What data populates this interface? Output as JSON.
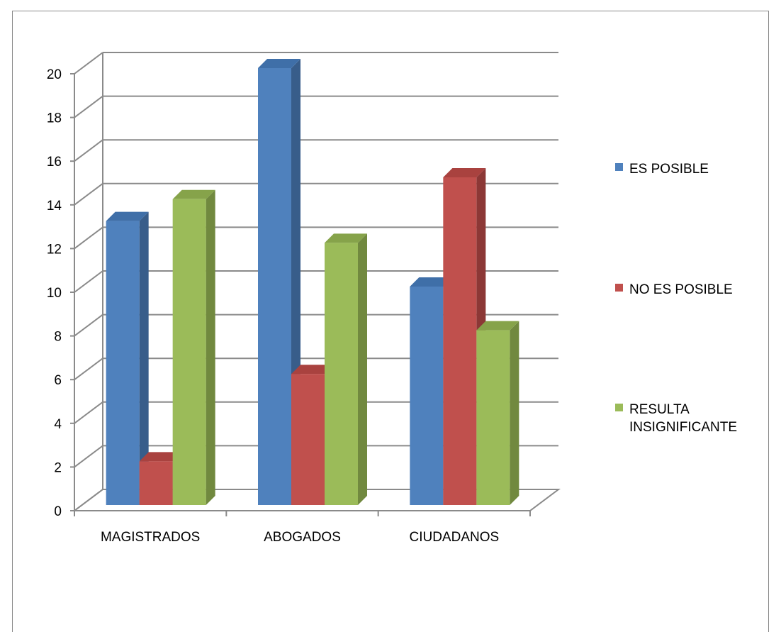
{
  "chart_data": {
    "type": "bar",
    "categories": [
      "MAGISTRADOS",
      "ABOGADOS",
      "CIUDADANOS"
    ],
    "series": [
      {
        "name": "ES POSIBLE",
        "values": [
          13,
          20,
          10
        ]
      },
      {
        "name": "NO ES POSIBLE",
        "values": [
          2,
          6,
          15
        ]
      },
      {
        "name": "RESULTA INSIGNIFICANTE",
        "values": [
          14,
          12,
          8
        ]
      }
    ],
    "legend_lines": [
      [
        "ES POSIBLE"
      ],
      [
        "NO ES POSIBLE"
      ],
      [
        "RESULTA",
        "INSIGNIFICANTE"
      ]
    ],
    "ylim": [
      0,
      20
    ],
    "yticks": [
      0,
      2,
      4,
      6,
      8,
      10,
      12,
      14,
      16,
      18,
      20
    ],
    "grid": true,
    "style": "3d-clustered-column",
    "legend_position": "right",
    "colors": {
      "front": [
        "#4f81bd",
        "#c0504d",
        "#9bbb59"
      ],
      "side": [
        "#385d8a",
        "#8c3836",
        "#71893f"
      ],
      "top": [
        "#3f6fa8",
        "#a9423f",
        "#86a34a"
      ]
    },
    "title": "",
    "xlabel": "",
    "ylabel": ""
  }
}
